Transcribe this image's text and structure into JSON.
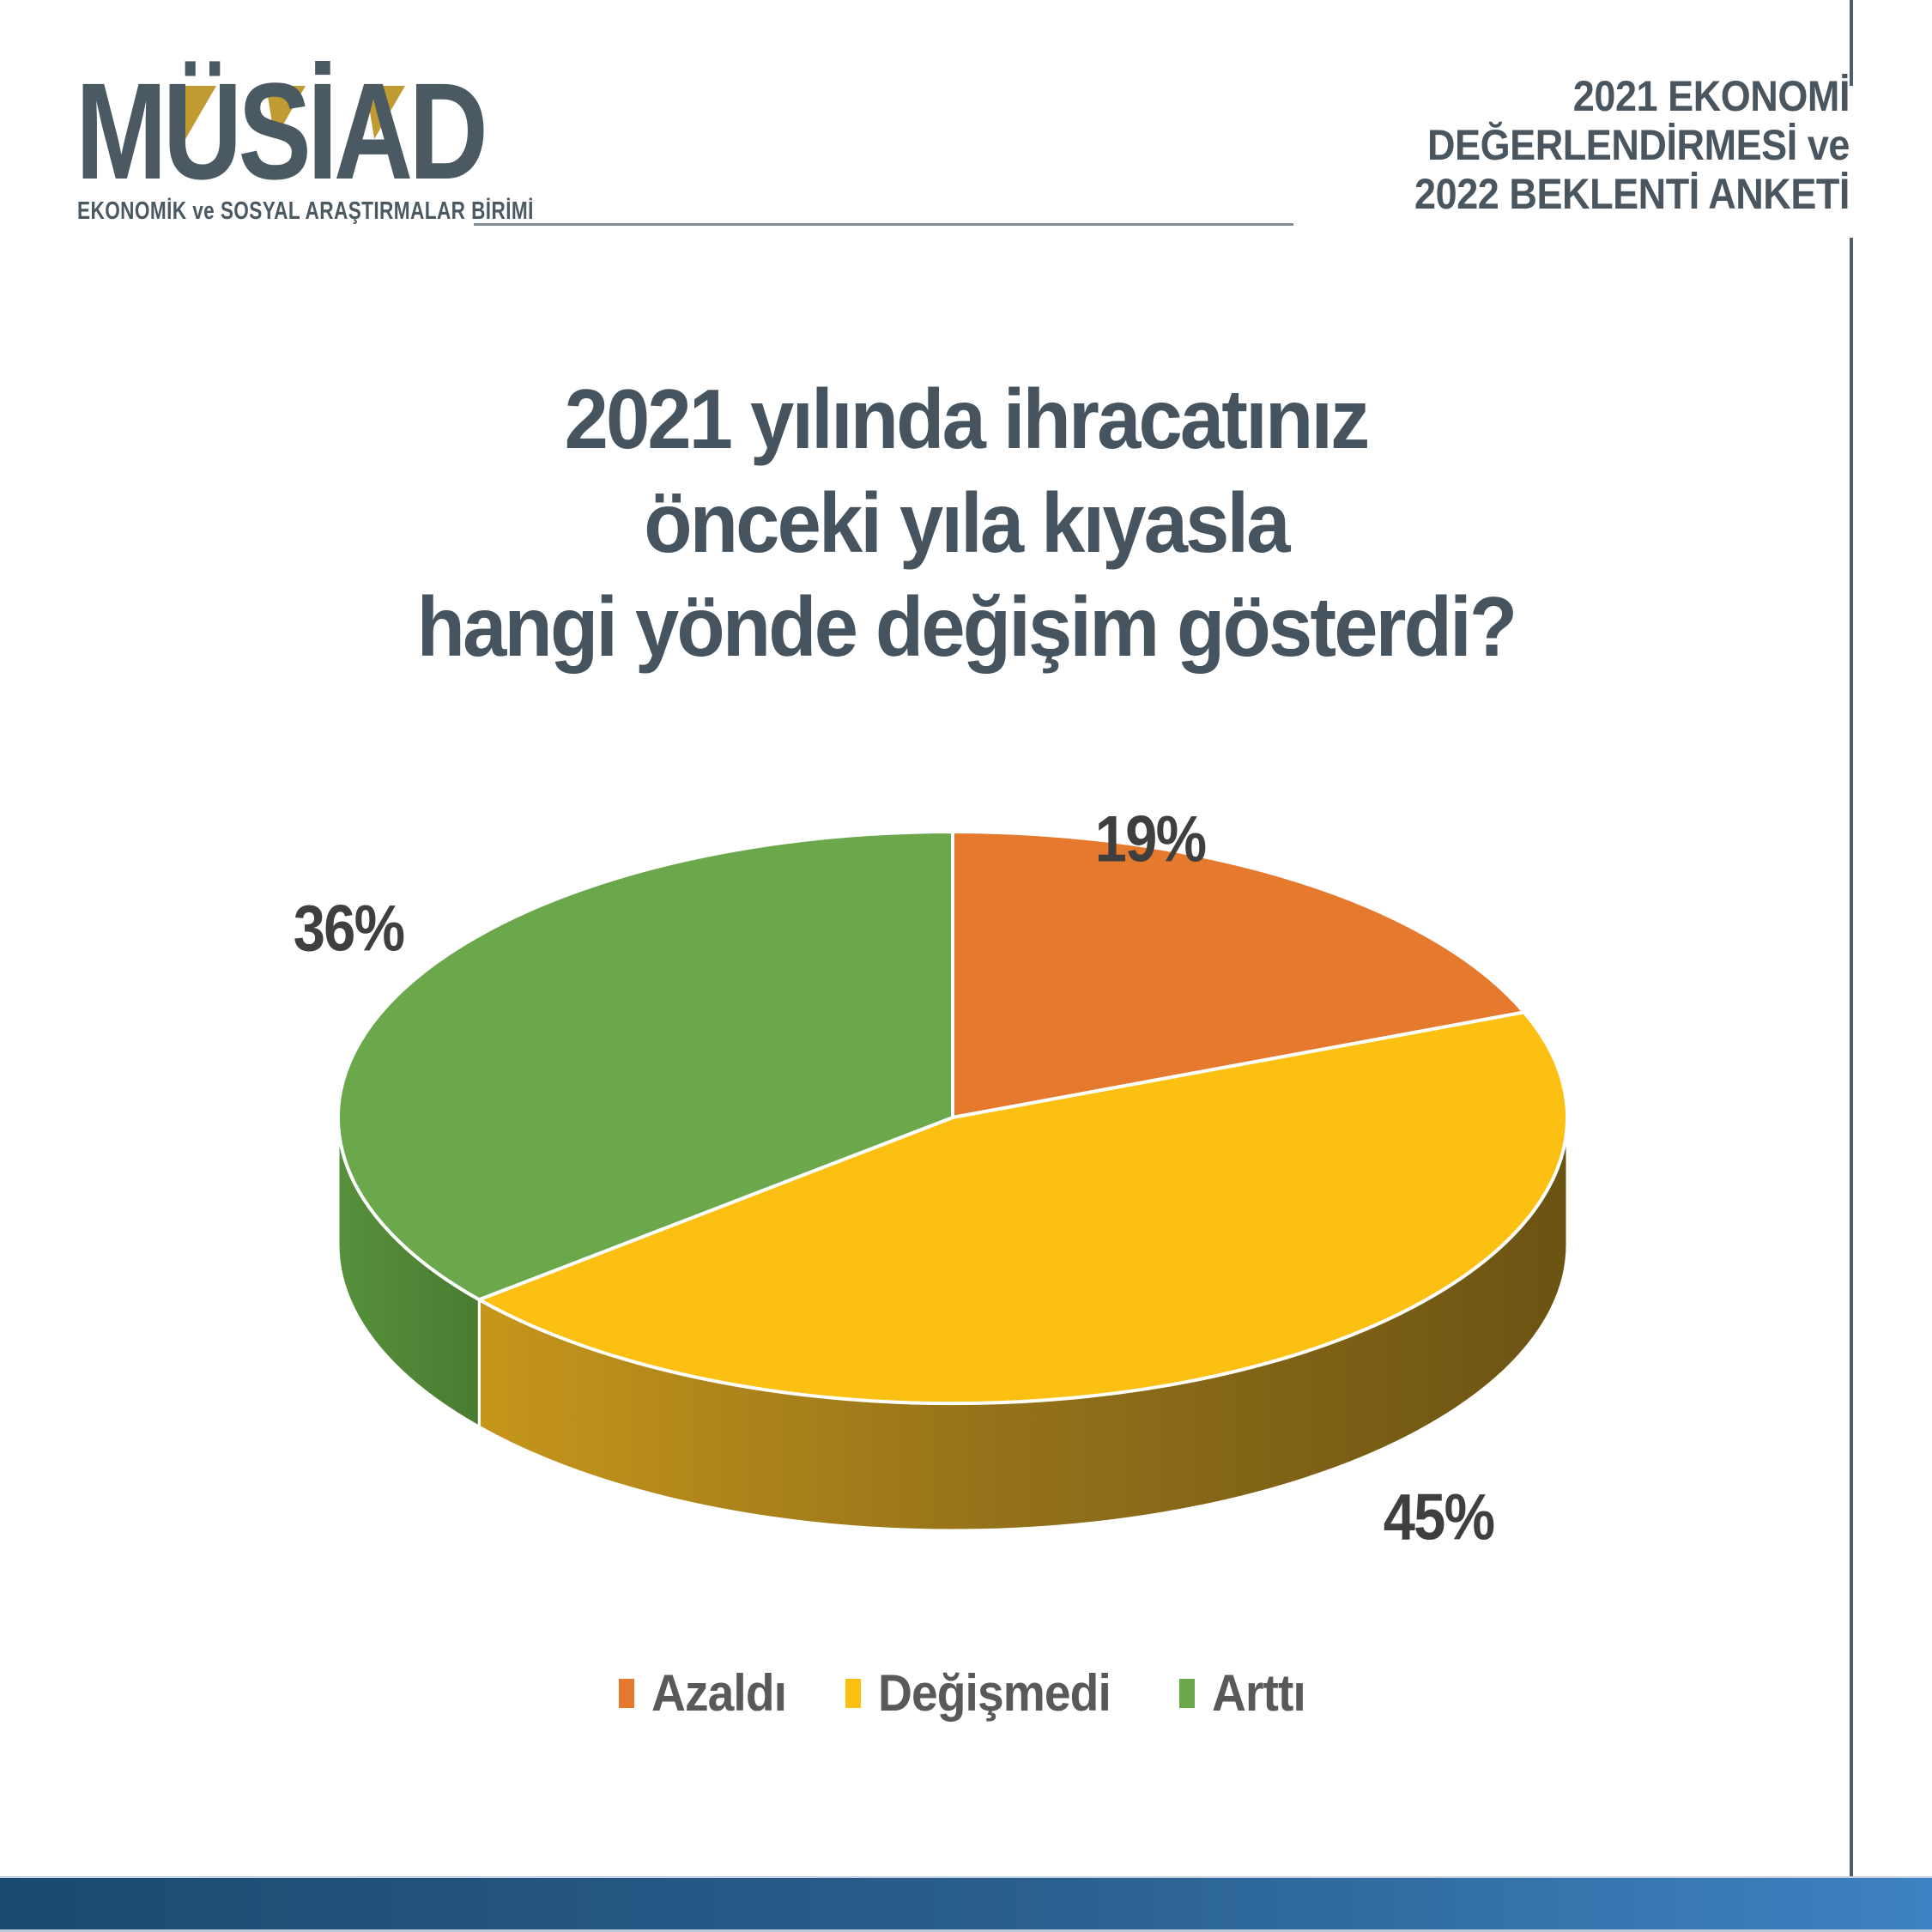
{
  "header": {
    "logo_text": "MÜSİAD",
    "logo_subtitle": "EKONOMİK ve SOSYAL ARAŞTIRMALAR BİRİMİ",
    "survey_title_lines": [
      "2021 EKONOMİ",
      "DEĞERLENDİRMESİ ve",
      "2022 BEKLENTİ ANKETİ"
    ]
  },
  "question": {
    "line1": "2021 yılında ihracatınız",
    "line2": "önceki yıla kıyasla",
    "line3": "hangi yönde değişim gösterdi?"
  },
  "chart_data": {
    "type": "pie",
    "style": "3d",
    "start_angle_deg": 0,
    "direction": "clockwise",
    "title": "2021 yılında ihracatınız önceki yıla kıyasla hangi yönde değişim gösterdi?",
    "legend_position": "bottom",
    "slices": [
      {
        "label": "Azaldı",
        "value_pct": 19,
        "display": "19%",
        "color": "#E5792E"
      },
      {
        "label": "Değişmedi",
        "value_pct": 45,
        "display": "45%",
        "color": "#FCC013"
      },
      {
        "label": "Arttı",
        "value_pct": 36,
        "display": "36%",
        "color": "#6BA84B"
      }
    ]
  },
  "colors": {
    "heading_text": "#49565f",
    "question_text": "#46545f",
    "percent_label_text": "#3f3f3f",
    "legend_text": "#595959",
    "logo_gold": "#bf9b31",
    "logo_slate": "#4b5962",
    "divider_line": "#4d5f6b",
    "footer_gradient_left": "#1c4970",
    "footer_gradient_right": "#3d82c2",
    "pie_side_yellow_dark": "#6b5313",
    "pie_side_green_dark": "#487a30"
  }
}
